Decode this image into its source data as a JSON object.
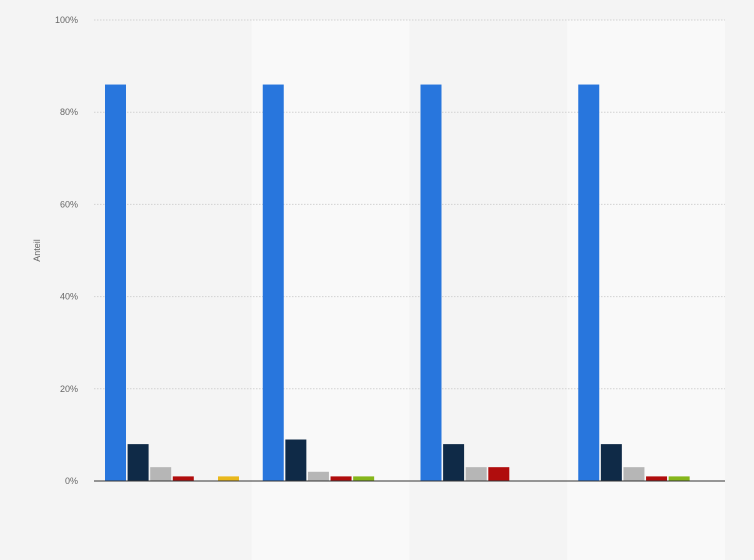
{
  "chart_data": {
    "type": "bar",
    "title": "",
    "xlabel": "",
    "ylabel": "Anteil",
    "ylim": [
      0,
      100
    ],
    "yticks": [
      0,
      20,
      40,
      60,
      80,
      100
    ],
    "ytick_labels": [
      "0%",
      "20%",
      "40%",
      "60%",
      "80%",
      "100%"
    ],
    "grid": true,
    "legend": "none",
    "categories": [
      "",
      "",
      "",
      ""
    ],
    "series": [
      {
        "color": "#2876dd",
        "values": [
          86,
          86,
          86,
          86
        ]
      },
      {
        "color": "#0f2a47",
        "values": [
          8,
          9,
          8,
          8
        ]
      },
      {
        "color": "#b6b6b6",
        "values": [
          3,
          2,
          3,
          3
        ]
      },
      {
        "color": "#b00d0d",
        "values": [
          1,
          1,
          3,
          1
        ]
      },
      {
        "color": "#86b61b",
        "values": [
          0,
          1,
          0,
          1
        ]
      },
      {
        "color": "#e9b81c",
        "values": [
          1,
          0,
          0,
          0
        ]
      }
    ]
  }
}
